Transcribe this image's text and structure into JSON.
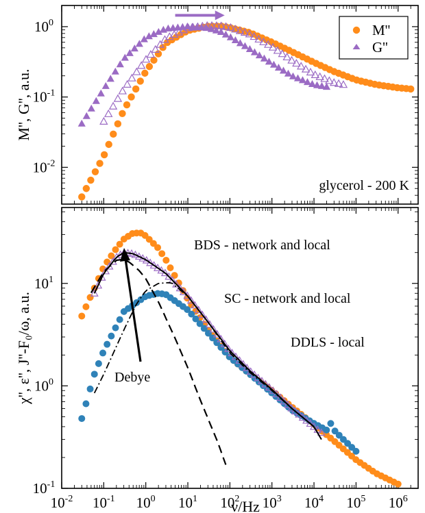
{
  "colors": {
    "orange": "#ff8c1a",
    "purple": "#9b6bc4",
    "blue": "#2f82b8",
    "black": "#000000"
  },
  "chart_data": [
    {
      "type": "scatter",
      "x_scale": "log",
      "y_scale": "log",
      "xlim": [
        0.01,
        3000000
      ],
      "ylim": [
        0.003,
        2
      ],
      "xlabel": "",
      "ylabel": "M'', G'', a.u.",
      "x_ticks": [
        "10",
        "10",
        "10",
        "10",
        "10",
        "10",
        "10",
        "10",
        "10"
      ],
      "x_tick_exps": [
        "-2",
        "-1",
        "0",
        "1",
        "2",
        "3",
        "4",
        "5",
        "6"
      ],
      "y_ticks": [
        "10",
        "10",
        "10"
      ],
      "y_tick_exps": [
        "-2",
        "-1",
        "0"
      ],
      "legend": {
        "position": "top-right",
        "entries": [
          "M''",
          "G''"
        ]
      },
      "annotations": [
        "glycerol - 200 K"
      ],
      "arrow": {
        "from_x": 5,
        "to_x": 60,
        "y": 1.45
      },
      "series": [
        {
          "name": "M''",
          "marker": "filled-circle",
          "color": "orange",
          "x": [
            0.03,
            0.06,
            0.1,
            0.3,
            1,
            3,
            10,
            30,
            60,
            100,
            300,
            1000,
            3000,
            10000,
            30000,
            100000,
            300000,
            1000000,
            2000000
          ],
          "y": [
            0.0038,
            0.0082,
            0.0145,
            0.065,
            0.23,
            0.58,
            0.88,
            1.01,
            1.02,
            0.97,
            0.82,
            0.6,
            0.44,
            0.31,
            0.23,
            0.175,
            0.15,
            0.135,
            0.13
          ]
        },
        {
          "name": "",
          "marker": "open-triangle",
          "color": "purple",
          "x": [
            0.1,
            0.3,
            1,
            3,
            10,
            30,
            60,
            100,
            300,
            1000,
            3000,
            10000,
            30000,
            50000
          ],
          "y": [
            0.045,
            0.13,
            0.34,
            0.68,
            0.96,
            1.04,
            1.03,
            0.98,
            0.78,
            0.52,
            0.33,
            0.21,
            0.16,
            0.15
          ]
        },
        {
          "name": "G''",
          "marker": "filled-triangle",
          "color": "purple",
          "x": [
            0.03,
            0.1,
            0.3,
            1,
            3,
            10,
            30,
            60,
            100,
            300,
            1000,
            3000,
            10000,
            20000
          ],
          "y": [
            0.042,
            0.13,
            0.35,
            0.7,
            0.94,
            1.01,
            0.96,
            0.85,
            0.72,
            0.48,
            0.3,
            0.2,
            0.15,
            0.14
          ]
        }
      ]
    },
    {
      "type": "scatter",
      "x_scale": "log",
      "y_scale": "log",
      "xlim": [
        0.01,
        3000000
      ],
      "ylim": [
        0.1,
        55
      ],
      "xlabel": "ν/Hz",
      "ylabel": "χ'', ε'', J''-F₀/ω, a.u.",
      "x_ticks": [
        "10",
        "10",
        "10",
        "10",
        "10",
        "10",
        "10",
        "10",
        "10"
      ],
      "x_tick_exps": [
        "-2",
        "-1",
        "0",
        "1",
        "2",
        "3",
        "4",
        "5",
        "6"
      ],
      "y_ticks": [
        "10",
        "10",
        "10"
      ],
      "y_tick_exps": [
        "-1",
        "0",
        "1"
      ],
      "annotations": [
        "BDS - network and local",
        "SC - network and local",
        "DDLS - local",
        "Debye"
      ],
      "series": [
        {
          "name": "BDS - network and local",
          "marker": "filled-circle",
          "color": "orange",
          "x": [
            0.03,
            0.06,
            0.1,
            0.2,
            0.3,
            0.5,
            0.8,
            1,
            2,
            3,
            10,
            30,
            100,
            300,
            1000,
            3000,
            10000,
            30000,
            100000,
            300000,
            1000000
          ],
          "y": [
            4.8,
            9,
            14.5,
            22,
            27,
            31,
            31,
            29,
            22,
            17,
            7,
            3.5,
            1.9,
            1.3,
            0.9,
            0.62,
            0.42,
            0.29,
            0.19,
            0.14,
            0.11
          ]
        },
        {
          "name": "SC - network and local",
          "marker": "open-triangle",
          "color": "purple",
          "x": [
            0.06,
            0.1,
            0.2,
            0.3,
            0.5,
            1,
            2,
            3,
            10,
            30,
            100,
            300,
            1000,
            3000,
            10000,
            15000
          ],
          "y": [
            8,
            12.5,
            18,
            20,
            19.5,
            17,
            14,
            12.5,
            7.5,
            4.2,
            2.2,
            1.4,
            0.92,
            0.6,
            0.4,
            0.35
          ]
        },
        {
          "name": "DDLS - local",
          "marker": "filled-circle",
          "color": "blue",
          "x": [
            0.03,
            0.06,
            0.1,
            0.3,
            1,
            2,
            3,
            10,
            30,
            100,
            300,
            1000,
            3000,
            10000,
            20000,
            25000,
            30000,
            50000,
            100000
          ],
          "y": [
            0.48,
            1.3,
            2.2,
            5.3,
            7.5,
            8,
            7.8,
            5.5,
            3.3,
            1.9,
            1.3,
            0.85,
            0.58,
            0.43,
            0.37,
            0.43,
            0.37,
            0.3,
            0.23
          ]
        },
        {
          "name": "Debye",
          "style": "dashed",
          "color": "black",
          "x": [
            0.05,
            0.1,
            0.2,
            0.27,
            0.4,
            0.7,
            1,
            2,
            5,
            10,
            20,
            50,
            80
          ],
          "y": [
            8.1,
            13,
            16.8,
            17.1,
            16.2,
            13.3,
            11.1,
            6.6,
            2.9,
            1.5,
            0.72,
            0.29,
            0.17
          ]
        },
        {
          "name": "",
          "style": "dash-dot",
          "color": "black",
          "x": [
            0.06,
            0.1,
            0.3,
            0.6,
            1,
            2,
            4,
            10,
            30,
            100,
            300,
            1000,
            3000,
            10000
          ],
          "y": [
            0.85,
            1.3,
            3.5,
            6.3,
            8.5,
            10,
            10.2,
            7.5,
            4.2,
            2.1,
            1.35,
            0.9,
            0.6,
            0.4
          ]
        },
        {
          "name": "",
          "style": "solid",
          "color": "black",
          "x": [
            0.06,
            0.1,
            0.2,
            0.3,
            0.5,
            1,
            2,
            3,
            10,
            30,
            100,
            300,
            1000,
            3000,
            10000,
            15000
          ],
          "y": [
            8,
            12.5,
            18,
            20,
            19.5,
            17,
            14,
            12.5,
            7.5,
            4.2,
            2.2,
            1.4,
            0.92,
            0.6,
            0.4,
            0.3
          ]
        }
      ]
    }
  ]
}
